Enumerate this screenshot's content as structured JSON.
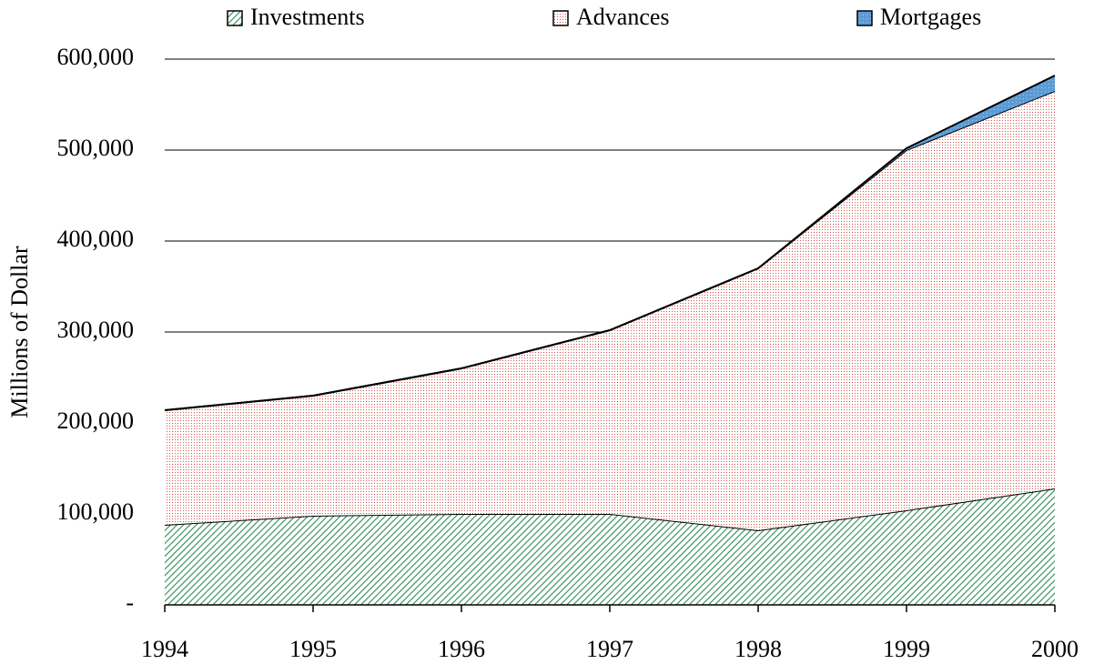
{
  "chart_data": {
    "type": "stacked-area",
    "y_label": "Millions of Dollar",
    "x": [
      1994,
      1995,
      1996,
      1997,
      1998,
      1999,
      2000
    ],
    "xlim": [
      1994,
      2000
    ],
    "xticks": [
      1994,
      1995,
      1996,
      1997,
      1998,
      1999,
      2000
    ],
    "ylim": [
      0,
      600000
    ],
    "yticks": [
      {
        "value": 0,
        "label": "-"
      },
      {
        "value": 100000,
        "label": "100,000"
      },
      {
        "value": 200000,
        "label": "200,000"
      },
      {
        "value": 300000,
        "label": "300,000"
      },
      {
        "value": 400000,
        "label": "400,000"
      },
      {
        "value": 500000,
        "label": "500,000"
      },
      {
        "value": 600000,
        "label": "600,000"
      }
    ],
    "grid": true,
    "legend": "top",
    "series": [
      {
        "name": "Investments",
        "color": "#2e8b57",
        "values": [
          88000,
          98000,
          100000,
          100000,
          82000,
          104000,
          128000
        ]
      },
      {
        "name": "Advances",
        "color": "#d9534f",
        "values": [
          126000,
          132000,
          160000,
          202000,
          288000,
          396000,
          437000
        ]
      },
      {
        "name": "Mortgages",
        "color": "#5b9bd5",
        "values": [
          0,
          0,
          0,
          0,
          0,
          2000,
          17000
        ]
      }
    ]
  }
}
